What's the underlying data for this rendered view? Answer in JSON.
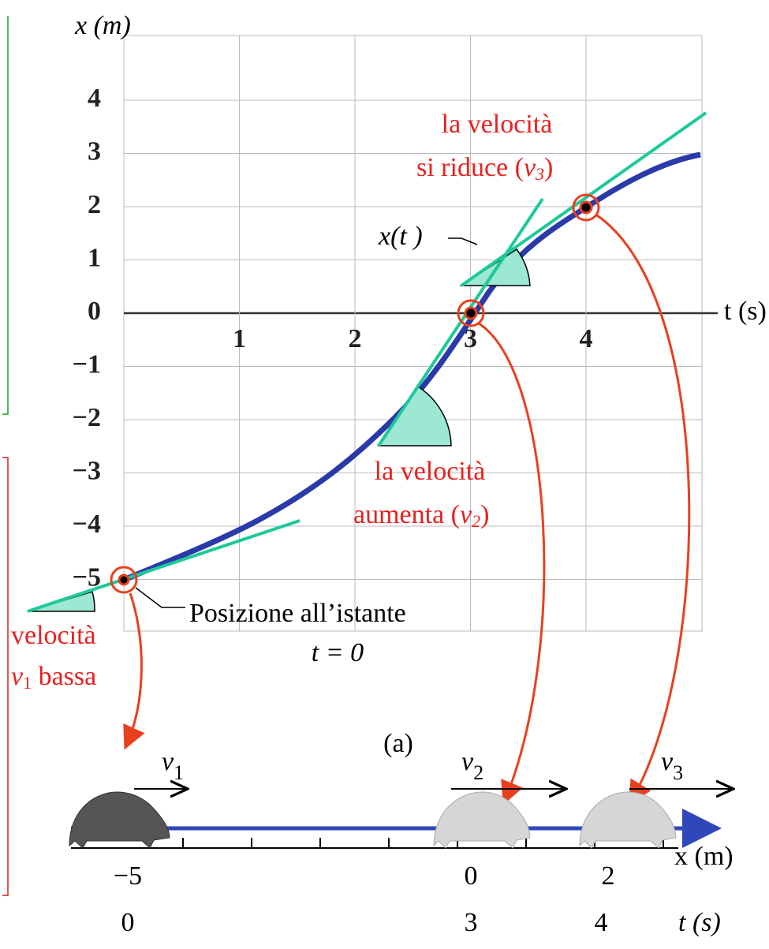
{
  "graph": {
    "y_axis_label": "x (m)",
    "x_axis_label": "t (s)",
    "x_ticks": [
      1,
      2,
      3,
      4
    ],
    "y_ticks": [
      4,
      3,
      2,
      1,
      0,
      {
        "value": -1,
        "label": "−1"
      },
      {
        "value": -2,
        "label": "−2"
      },
      {
        "value": -3,
        "label": "−3"
      },
      {
        "value": -4,
        "label": "−4"
      },
      {
        "value": -5,
        "label": "−5"
      }
    ],
    "curve_label": "x(t )",
    "start_note": {
      "line1": "Posizione all’istante",
      "line2": "t = 0"
    },
    "caption": "(a)",
    "annotation_reduce": {
      "line1": "la velocità",
      "line2": "si riduce (",
      "var": "v",
      "sub": "3",
      "close": ")"
    },
    "annotation_increase": {
      "line1": "la velocità",
      "line2": "aumenta (",
      "var": "v",
      "sub": "2",
      "close": ")"
    },
    "annotation_low": {
      "line1": "velocità",
      "var": "v",
      "sub": "1",
      "rest": " bassa"
    }
  },
  "number_line": {
    "x_ticks": [
      {
        "value": -5,
        "label": "−5"
      },
      0,
      2
    ],
    "x_label": "x (m)",
    "t_values": [
      0,
      3,
      4
    ],
    "t_label": "t (s)",
    "velocities": [
      {
        "var": "v",
        "sub": "1"
      },
      {
        "var": "v",
        "sub": "2"
      },
      {
        "var": "v",
        "sub": "3"
      }
    ]
  }
}
